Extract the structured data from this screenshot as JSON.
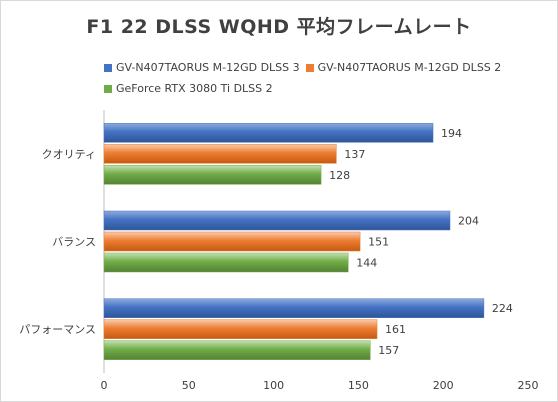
{
  "chart_data": {
    "type": "bar",
    "orientation": "horizontal",
    "title": "F1 22 DLSS WQHD 平均フレームレート",
    "categories": [
      "クオリティ",
      "バランス",
      "パフォーマンス"
    ],
    "series": [
      {
        "name": "GV-N407TAORUS M-12GD DLSS 3",
        "color": "#4472C4",
        "values": [
          194,
          204,
          224
        ]
      },
      {
        "name": "GV-N407TAORUS M-12GD DLSS 2",
        "color": "#ED7D31",
        "values": [
          137,
          151,
          161
        ]
      },
      {
        "name": "GeForce RTX 3080 Ti DLSS 2",
        "color": "#70AD47",
        "values": [
          128,
          144,
          157
        ]
      }
    ],
    "xlim": [
      0,
      250
    ],
    "xticks": [
      0,
      50,
      100,
      150,
      200,
      250
    ],
    "xlabel": "",
    "ylabel": "",
    "grid": false,
    "legend_position": "top"
  }
}
